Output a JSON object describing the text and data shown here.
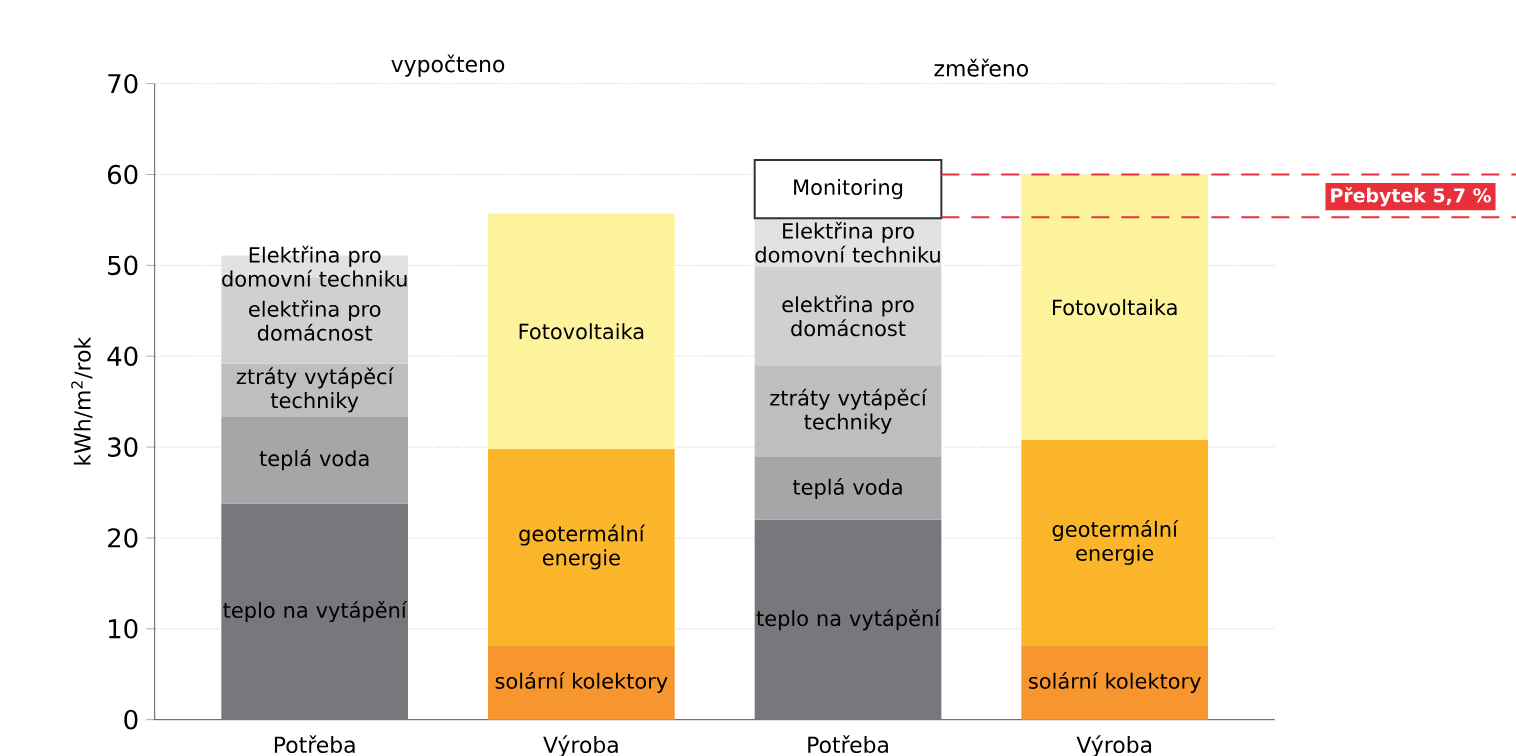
{
  "chart_data": {
    "type": "bar",
    "stacked": true,
    "ylabel": "kWh/m$^{2}$/rok",
    "categories": [
      "Potřeba",
      "Výroba",
      "Potřeba",
      "Výroba"
    ],
    "series": [
      {
        "name": "teplo na vytápění",
        "color": "#77787b",
        "values": [
          23.8,
          null,
          22.0,
          null
        ]
      },
      {
        "name": "teplá voda",
        "color": "#a4a6a8",
        "values": [
          9.6,
          null,
          6.9,
          null
        ]
      },
      {
        "name": "ztráty vytápěcí techniky",
        "color": "#bcbec0",
        "values": [
          5.8,
          null,
          10.1,
          null
        ]
      },
      {
        "name": "elektřina pro domácnost",
        "color": "#cfd0d2",
        "values": [
          9.5,
          null,
          10.9,
          null
        ]
      },
      {
        "name": "Elektřina pro domovní techniku",
        "color": "#e1e2e3",
        "values": [
          2.4,
          null,
          5.3,
          null
        ]
      },
      {
        "name": "Monitoring",
        "color": "#ffffff",
        "values": [
          null,
          null,
          6.4,
          null
        ]
      },
      {
        "name": "solární kolektory",
        "color": "#f7962f",
        "values": [
          null,
          8.2,
          null,
          8.2
        ]
      },
      {
        "name": "geotermální energie",
        "color": "#fbb52a",
        "values": [
          null,
          21.6,
          null,
          22.6
        ]
      },
      {
        "name": "Fotovoltaika",
        "color": "#fdf39c",
        "values": [
          null,
          25.9,
          null,
          29.2
        ]
      }
    ],
    "ylim": [
      0,
      70
    ],
    "yticks": [
      0,
      10,
      20,
      30,
      40,
      50,
      60,
      70
    ],
    "grid": "y",
    "annotations": [
      "vypočteno",
      "změřeno"
    ],
    "ref_lines": [
      {
        "axis": "y",
        "value": 60.0,
        "color": "#e8303a",
        "line_style": "dashed",
        "label": "Přebytek 5,7 %"
      },
      {
        "axis": "y",
        "value": 55.3,
        "color": "#e8303a",
        "line_style": "dashed"
      }
    ]
  }
}
